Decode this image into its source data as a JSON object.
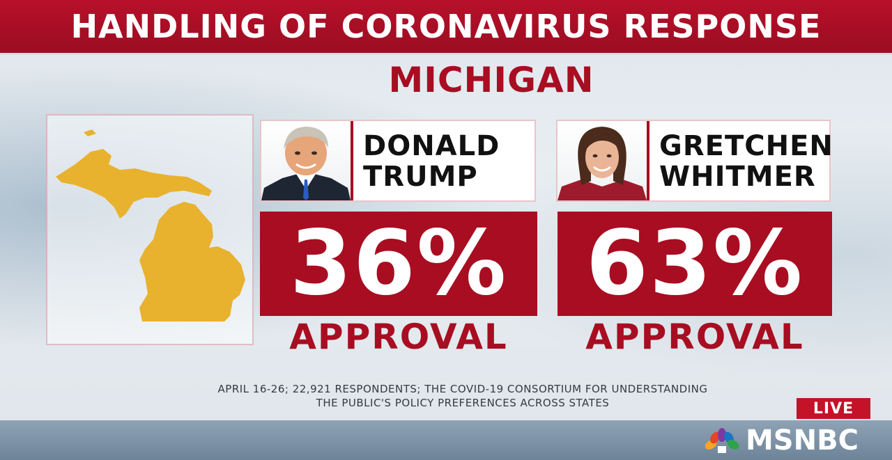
{
  "title": "HANDLING OF CORONAVIRUS RESPONSE",
  "state": "MICHIGAN",
  "map_icon": "michigan-map",
  "candidates": [
    {
      "first": "DONALD",
      "last": "TRUMP",
      "percent": "36%",
      "label": "APPROVAL",
      "photo_icon": "portrait-man"
    },
    {
      "first": "GRETCHEN",
      "last": "WHITMER",
      "percent": "63%",
      "label": "APPROVAL",
      "photo_icon": "portrait-woman"
    }
  ],
  "source_line1": "APRIL 16-26; 22,921 RESPONDENTS; THE COVID-19 CONSORTIUM FOR UNDERSTANDING",
  "source_line2": "THE PUBLIC'S POLICY PREFERENCES ACROSS STATES",
  "live": "LIVE",
  "network": "MSNBC",
  "network_icon": "peacock-logo",
  "colors": {
    "accent": "#a80d22",
    "map": "#e8b22e",
    "live": "#c41229"
  }
}
